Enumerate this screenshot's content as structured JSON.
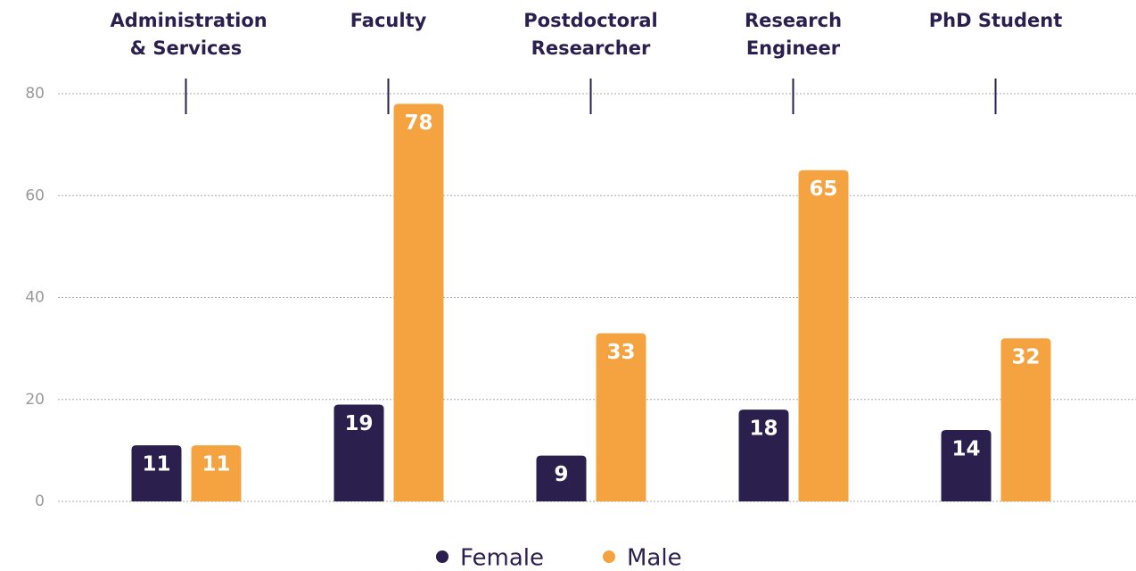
{
  "chart_data": {
    "type": "bar",
    "categories": [
      "Administration & Services",
      "Faculty",
      "Postdoctoral Researcher",
      "Research Engineer",
      "PhD Student"
    ],
    "series": [
      {
        "name": "Female",
        "color": "#2a1f4d",
        "values": [
          11,
          19,
          9,
          18,
          14
        ]
      },
      {
        "name": "Male",
        "color": "#f4a340",
        "values": [
          11,
          78,
          33,
          65,
          32
        ]
      }
    ],
    "ylim": [
      0,
      80
    ],
    "yticks": [
      0,
      20,
      40,
      60,
      80
    ],
    "grid": true,
    "legend": "bottom"
  }
}
